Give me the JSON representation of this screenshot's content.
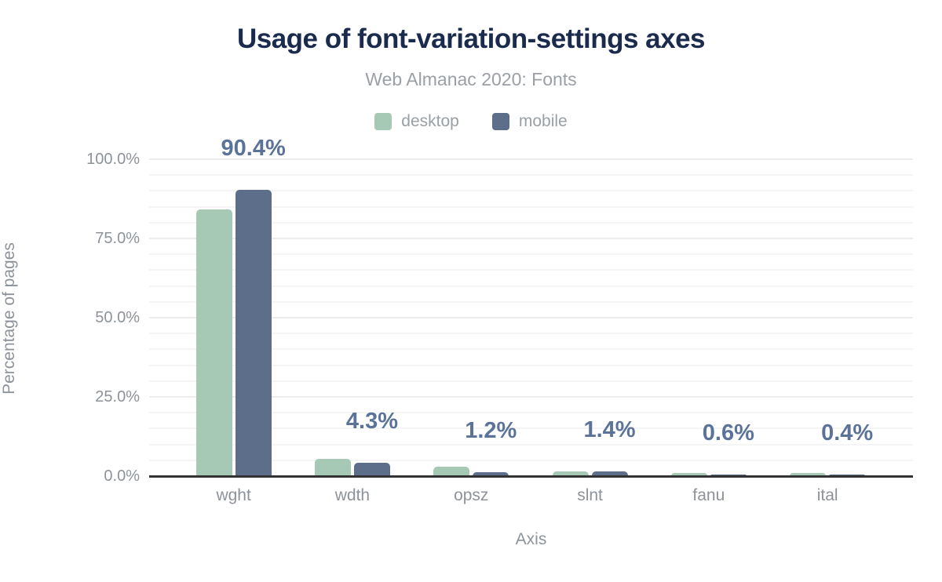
{
  "chart_data": {
    "type": "bar",
    "title": "Usage of font-variation-settings axes",
    "subtitle": "Web Almanac 2020: Fonts",
    "xlabel": "Axis",
    "ylabel": "Percentage of pages",
    "categories": [
      "wght",
      "wdth",
      "opsz",
      "slnt",
      "fanu",
      "ital"
    ],
    "series": [
      {
        "name": "desktop",
        "color": "#a6c9b6",
        "values": [
          84.2,
          5.4,
          3.0,
          1.6,
          0.9,
          0.9
        ]
      },
      {
        "name": "mobile",
        "color": "#5c6e8a",
        "values": [
          90.4,
          4.3,
          1.2,
          1.4,
          0.6,
          0.4
        ]
      }
    ],
    "data_labels": [
      "90.4%",
      "4.3%",
      "1.2%",
      "1.4%",
      "0.6%",
      "0.4%"
    ],
    "data_labels_series": "mobile",
    "ylim": [
      0,
      100
    ],
    "y_ticks": [
      {
        "value": 0,
        "label": "0.0%"
      },
      {
        "value": 25,
        "label": "25.0%"
      },
      {
        "value": 50,
        "label": "50.0%"
      },
      {
        "value": 75,
        "label": "75.0%"
      },
      {
        "value": 100,
        "label": "100.0%"
      }
    ],
    "minor_grid_step": 5,
    "grid": true,
    "legend_position": "top",
    "colors": {
      "title": "#1b2b4d",
      "subtitle": "#9aa0a6",
      "legend_text": "#999fa6",
      "axis_text": "#8d939b",
      "data_label": "#5b7399",
      "axis_line": "#333333",
      "grid_major": "#ececec",
      "grid_minor": "#f5f5f5",
      "background": "#ffffff"
    }
  }
}
